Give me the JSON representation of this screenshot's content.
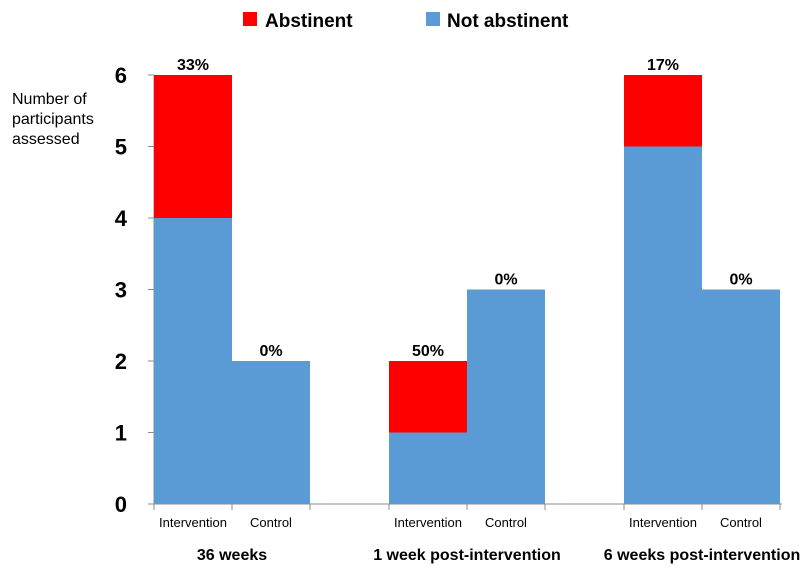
{
  "chart_data": {
    "type": "bar",
    "stacked": true,
    "ylabel": [
      "Number of",
      "participants",
      "assessed"
    ],
    "ylim": [
      0,
      6
    ],
    "yticks": [
      0,
      1,
      2,
      3,
      4,
      5,
      6
    ],
    "legend": [
      {
        "name": "Abstinent",
        "color": "#ff0000"
      },
      {
        "name": "Not abstinent",
        "color": "#5b9bd5"
      }
    ],
    "groups": [
      {
        "label": "36 weeks",
        "bars": [
          {
            "category": "Intervention",
            "not_abstinent": 4,
            "abstinent": 2,
            "percent": "33%"
          },
          {
            "category": "Control",
            "not_abstinent": 2,
            "abstinent": 0,
            "percent": "0%"
          }
        ]
      },
      {
        "label": "1 week post-intervention",
        "bars": [
          {
            "category": "Intervention",
            "not_abstinent": 1,
            "abstinent": 1,
            "percent": "50%"
          },
          {
            "category": "Control",
            "not_abstinent": 3,
            "abstinent": 0,
            "percent": "0%"
          }
        ]
      },
      {
        "label": "6 weeks post-intervention",
        "bars": [
          {
            "category": "Intervention",
            "not_abstinent": 5,
            "abstinent": 1,
            "percent": "17%"
          },
          {
            "category": "Control",
            "not_abstinent": 3,
            "abstinent": 0,
            "percent": "0%"
          }
        ]
      }
    ]
  }
}
